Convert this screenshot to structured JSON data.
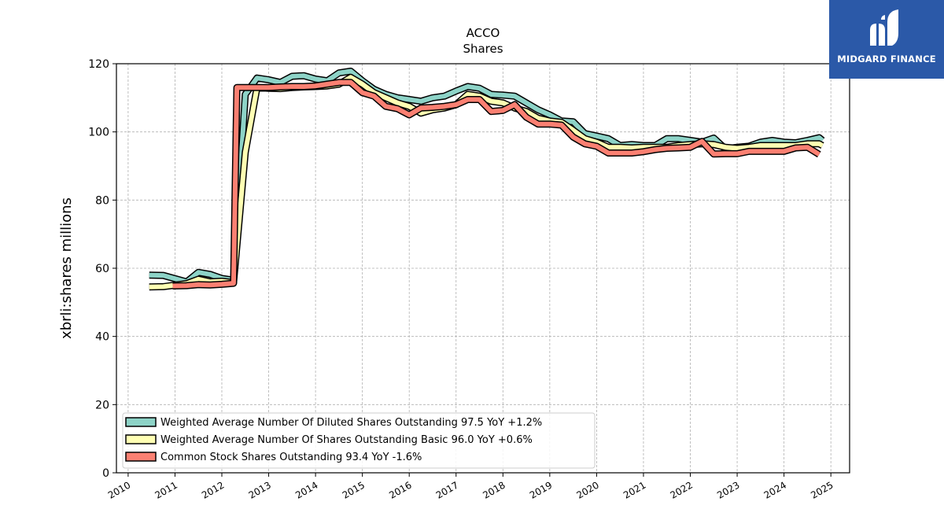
{
  "chart_data": {
    "type": "line",
    "title": "ACCO",
    "subtitle": "Shares",
    "ylabel": "xbrli:shares millions",
    "xlabel": "",
    "ylim": [
      0,
      120
    ],
    "xlim": [
      2009.75,
      2025.4
    ],
    "yticks": [
      0,
      20,
      40,
      60,
      80,
      100,
      120
    ],
    "xticks": [
      "2010",
      "2011",
      "2012",
      "2013",
      "2014",
      "2015",
      "2016",
      "2017",
      "2018",
      "2019",
      "2020",
      "2021",
      "2022",
      "2023",
      "2024",
      "2025"
    ],
    "grid": true,
    "legend_position": "lower-left",
    "series": [
      {
        "name": "Weighted Average Number Of Diluted Shares Outstanding",
        "legend_label": "Weighted Average Number Of Diluted Shares Outstanding  97.5 YoY +1.2%",
        "color": "#8dd3c7",
        "points": [
          [
            2010.45,
            58.0
          ],
          [
            2010.75,
            57.9
          ],
          [
            2011.25,
            56.0
          ],
          [
            2011.5,
            58.8
          ],
          [
            2011.75,
            58.2
          ],
          [
            2012.0,
            57.0
          ],
          [
            2012.25,
            56.5
          ],
          [
            2012.5,
            111.0
          ],
          [
            2012.75,
            115.8
          ],
          [
            2013.0,
            115.3
          ],
          [
            2013.25,
            114.5
          ],
          [
            2013.5,
            116.3
          ],
          [
            2013.75,
            116.5
          ],
          [
            2014.0,
            115.5
          ],
          [
            2014.25,
            115.0
          ],
          [
            2014.5,
            117.3
          ],
          [
            2014.75,
            117.8
          ],
          [
            2015.0,
            115.0
          ],
          [
            2015.25,
            112.5
          ],
          [
            2015.5,
            111.0
          ],
          [
            2015.75,
            110.0
          ],
          [
            2016.0,
            109.5
          ],
          [
            2016.25,
            109.0
          ],
          [
            2016.5,
            110.0
          ],
          [
            2016.75,
            110.5
          ],
          [
            2017.0,
            112.0
          ],
          [
            2017.25,
            113.3
          ],
          [
            2017.5,
            112.8
          ],
          [
            2017.75,
            111.0
          ],
          [
            2018.0,
            110.8
          ],
          [
            2018.25,
            110.5
          ],
          [
            2018.5,
            108.5
          ],
          [
            2018.75,
            106.5
          ],
          [
            2019.0,
            105.0
          ],
          [
            2019.25,
            103.2
          ],
          [
            2019.5,
            103.0
          ],
          [
            2019.75,
            99.5
          ],
          [
            2020.0,
            98.8
          ],
          [
            2020.25,
            98.0
          ],
          [
            2020.5,
            96.0
          ],
          [
            2020.75,
            96.3
          ],
          [
            2021.0,
            96.0
          ],
          [
            2021.25,
            96.0
          ],
          [
            2021.5,
            98.0
          ],
          [
            2021.75,
            98.0
          ],
          [
            2022.0,
            97.5
          ],
          [
            2022.25,
            97.0
          ],
          [
            2022.5,
            98.2
          ],
          [
            2022.75,
            95.0
          ],
          [
            2023.0,
            95.5
          ],
          [
            2023.25,
            95.8
          ],
          [
            2023.5,
            97.0
          ],
          [
            2023.75,
            97.5
          ],
          [
            2024.0,
            97.0
          ],
          [
            2024.25,
            96.8
          ],
          [
            2024.5,
            97.5
          ],
          [
            2024.75,
            98.3
          ],
          [
            2024.82,
            97.5
          ]
        ]
      },
      {
        "name": "Weighted Average Number Of Shares Outstanding Basic",
        "legend_label": "Weighted Average Number Of Shares Outstanding Basic  96.0 YoY +0.6%",
        "color": "#ffffb3",
        "points": [
          [
            2010.45,
            54.5
          ],
          [
            2010.75,
            54.6
          ],
          [
            2011.25,
            55.5
          ],
          [
            2011.5,
            56.8
          ],
          [
            2011.75,
            56.0
          ],
          [
            2012.0,
            56.2
          ],
          [
            2012.25,
            55.8
          ],
          [
            2012.5,
            94.0
          ],
          [
            2012.75,
            113.0
          ],
          [
            2013.0,
            112.8
          ],
          [
            2013.25,
            112.7
          ],
          [
            2013.5,
            113.0
          ],
          [
            2013.75,
            113.2
          ],
          [
            2014.0,
            113.3
          ],
          [
            2014.25,
            113.5
          ],
          [
            2014.5,
            114.0
          ],
          [
            2014.75,
            116.0
          ],
          [
            2015.0,
            114.0
          ],
          [
            2015.25,
            111.5
          ],
          [
            2015.5,
            110.0
          ],
          [
            2015.75,
            108.5
          ],
          [
            2016.0,
            107.5
          ],
          [
            2016.25,
            105.5
          ],
          [
            2016.5,
            106.5
          ],
          [
            2016.75,
            107.0
          ],
          [
            2017.0,
            108.0
          ],
          [
            2017.25,
            111.0
          ],
          [
            2017.5,
            110.5
          ],
          [
            2017.75,
            109.0
          ],
          [
            2018.0,
            108.5
          ],
          [
            2018.25,
            107.0
          ],
          [
            2018.5,
            106.0
          ],
          [
            2018.75,
            104.0
          ],
          [
            2019.0,
            103.2
          ],
          [
            2019.25,
            102.8
          ],
          [
            2019.5,
            100.5
          ],
          [
            2019.75,
            98.0
          ],
          [
            2020.0,
            97.0
          ],
          [
            2020.25,
            95.5
          ],
          [
            2020.5,
            95.5
          ],
          [
            2020.75,
            95.3
          ],
          [
            2021.0,
            95.5
          ],
          [
            2021.25,
            95.5
          ],
          [
            2021.5,
            95.5
          ],
          [
            2021.75,
            96.0
          ],
          [
            2022.0,
            96.3
          ],
          [
            2022.25,
            96.5
          ],
          [
            2022.5,
            96.3
          ],
          [
            2022.75,
            95.5
          ],
          [
            2023.0,
            95.2
          ],
          [
            2023.25,
            95.5
          ],
          [
            2023.5,
            96.0
          ],
          [
            2023.75,
            96.0
          ],
          [
            2024.0,
            96.0
          ],
          [
            2024.25,
            96.0
          ],
          [
            2024.5,
            96.5
          ],
          [
            2024.75,
            96.5
          ],
          [
            2024.82,
            96.0
          ]
        ]
      },
      {
        "name": "Common Stock Shares Outstanding",
        "legend_label": "Common Stock Shares Outstanding  93.4 YoY -1.6%",
        "color": "#fb8072",
        "points": [
          [
            2010.95,
            54.8
          ],
          [
            2011.25,
            54.9
          ],
          [
            2011.5,
            55.2
          ],
          [
            2011.75,
            55.1
          ],
          [
            2012.0,
            55.3
          ],
          [
            2012.25,
            55.6
          ],
          [
            2012.32,
            113.0
          ],
          [
            2012.75,
            113.0
          ],
          [
            2013.0,
            113.0
          ],
          [
            2013.25,
            113.2
          ],
          [
            2013.5,
            113.3
          ],
          [
            2013.75,
            113.3
          ],
          [
            2014.0,
            113.5
          ],
          [
            2014.25,
            114.0
          ],
          [
            2014.5,
            114.5
          ],
          [
            2014.75,
            114.5
          ],
          [
            2015.0,
            111.5
          ],
          [
            2015.25,
            110.5
          ],
          [
            2015.5,
            107.5
          ],
          [
            2015.75,
            106.8
          ],
          [
            2016.0,
            105.0
          ],
          [
            2016.25,
            107.0
          ],
          [
            2016.5,
            107.2
          ],
          [
            2016.75,
            107.5
          ],
          [
            2017.0,
            108.0
          ],
          [
            2017.25,
            109.5
          ],
          [
            2017.5,
            109.5
          ],
          [
            2017.75,
            106.0
          ],
          [
            2018.0,
            106.3
          ],
          [
            2018.25,
            108.0
          ],
          [
            2018.5,
            104.3
          ],
          [
            2018.75,
            102.3
          ],
          [
            2019.0,
            102.3
          ],
          [
            2019.25,
            102.0
          ],
          [
            2019.5,
            98.5
          ],
          [
            2019.75,
            96.5
          ],
          [
            2020.0,
            95.8
          ],
          [
            2020.25,
            93.8
          ],
          [
            2020.5,
            93.8
          ],
          [
            2020.75,
            93.8
          ],
          [
            2021.0,
            94.2
          ],
          [
            2021.25,
            94.8
          ],
          [
            2021.5,
            95.2
          ],
          [
            2021.75,
            95.3
          ],
          [
            2022.0,
            95.5
          ],
          [
            2022.25,
            97.2
          ],
          [
            2022.5,
            93.5
          ],
          [
            2022.75,
            93.6
          ],
          [
            2023.0,
            93.6
          ],
          [
            2023.25,
            94.3
          ],
          [
            2023.5,
            94.3
          ],
          [
            2023.75,
            94.3
          ],
          [
            2024.0,
            94.3
          ],
          [
            2024.25,
            95.3
          ],
          [
            2024.5,
            95.5
          ],
          [
            2024.75,
            93.4
          ]
        ]
      }
    ]
  },
  "logo": {
    "text": "MIDGARD FINANCE",
    "color": "#2b59a8"
  }
}
